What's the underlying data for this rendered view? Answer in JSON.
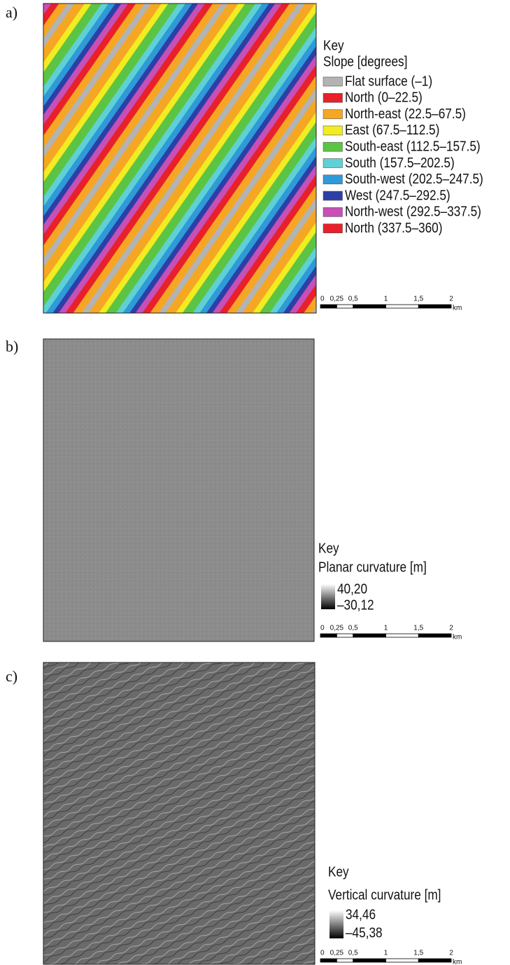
{
  "panels": [
    {
      "label": "a)",
      "key": "Key",
      "legend_title": "Slope [degrees]",
      "entries": [
        {
          "label": "Flat surface (–1)",
          "color": "#b3b3b3"
        },
        {
          "label": "North (0–22.5)",
          "color": "#e8202a"
        },
        {
          "label": "North-east (22.5–67.5)",
          "color": "#f5a623"
        },
        {
          "label": "East (67.5–112.5)",
          "color": "#f2ec22"
        },
        {
          "label": "South-east (112.5–157.5)",
          "color": "#5cc444"
        },
        {
          "label": "South (157.5–202.5)",
          "color": "#5fd0d6"
        },
        {
          "label": "South-west (202.5–247.5)",
          "color": "#2e9ad8"
        },
        {
          "label": "West (247.5–292.5)",
          "color": "#2d3fa6"
        },
        {
          "label": "North-west (292.5–337.5)",
          "color": "#c84fb5"
        },
        {
          "label": "North (337.5–360)",
          "color": "#e8202a"
        }
      ],
      "scale": {
        "ticks": [
          "0",
          "0,25",
          "0,5",
          "1",
          "1,5",
          "2"
        ],
        "unit": "km"
      }
    },
    {
      "label": "b)",
      "key": "Key",
      "legend_title": "Planar curvature [m]",
      "ramp": {
        "max": "40,20",
        "min": "–30,12"
      },
      "scale": {
        "ticks": [
          "0",
          "0,25",
          "0,5",
          "1",
          "1,5",
          "2"
        ],
        "unit": "km"
      }
    },
    {
      "label": "c)",
      "key": "Key",
      "legend_title": "Vertical curvature [m]",
      "ramp": {
        "max": "34,46",
        "min": "–45,38"
      },
      "scale": {
        "ticks": [
          "0",
          "0,25",
          "0,5",
          "1",
          "1,5",
          "2"
        ],
        "unit": "km"
      }
    }
  ]
}
